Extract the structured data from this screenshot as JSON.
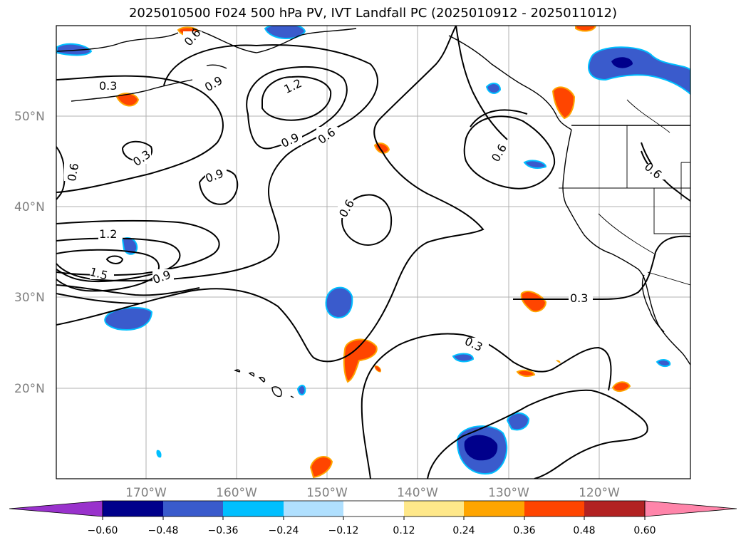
{
  "title": "2025010500 F024 500 hPa PV, IVT Landfall PC (2025010912 - 2025011012)",
  "map": {
    "lat_labels": [
      "50°N",
      "40°N",
      "30°N",
      "20°N"
    ],
    "lon_labels": [
      "170°W",
      "160°W",
      "150°W",
      "140°W",
      "130°W",
      "120°W"
    ],
    "contour_labels": [
      "0.6",
      "0.9",
      "1.2",
      "0.3",
      "0.3",
      "0.6",
      "0.9",
      "1.2",
      "1.5",
      "0.9",
      "0.9",
      "0.6",
      "0.6",
      "0.6",
      "0.6",
      "0.3",
      "0.3"
    ]
  },
  "colorbar": {
    "tick_labels": [
      "−0.60",
      "−0.48",
      "−0.36",
      "−0.24",
      "−0.12",
      "0.12",
      "0.24",
      "0.36",
      "0.48",
      "0.60"
    ],
    "colors": [
      "#9932cc",
      "#00008b",
      "#3a5bcc",
      "#00bfff",
      "#b0e0ff",
      "#ffffff",
      "#ffe88a",
      "#ffa500",
      "#ff4500",
      "#b22222",
      "#ff85aa"
    ]
  }
}
